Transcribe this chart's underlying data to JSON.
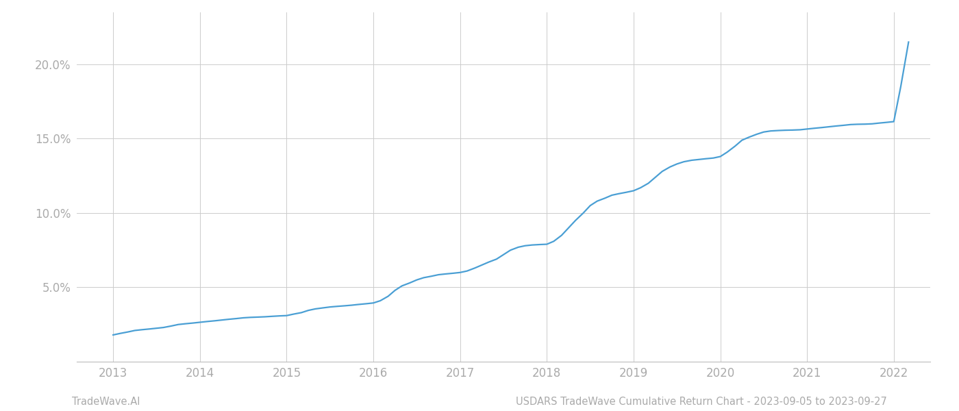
{
  "title": "USDARS TradeWave Cumulative Return Chart - 2023-09-05 to 2023-09-27",
  "footer_left": "TradeWave.AI",
  "footer_right": "USDARS TradeWave Cumulative Return Chart - 2023-09-05 to 2023-09-27",
  "line_color": "#4a9fd4",
  "background_color": "#ffffff",
  "grid_color": "#cccccc",
  "x_years": [
    2013,
    2014,
    2015,
    2016,
    2017,
    2018,
    2019,
    2020,
    2021,
    2022
  ],
  "x_values": [
    2013.0,
    2013.08,
    2013.17,
    2013.25,
    2013.33,
    2013.42,
    2013.5,
    2013.58,
    2013.67,
    2013.75,
    2013.83,
    2013.92,
    2014.0,
    2014.08,
    2014.17,
    2014.25,
    2014.33,
    2014.42,
    2014.5,
    2014.58,
    2014.67,
    2014.75,
    2014.83,
    2014.92,
    2015.0,
    2015.08,
    2015.17,
    2015.25,
    2015.33,
    2015.42,
    2015.5,
    2015.58,
    2015.67,
    2015.75,
    2015.83,
    2015.92,
    2016.0,
    2016.08,
    2016.17,
    2016.25,
    2016.33,
    2016.42,
    2016.5,
    2016.58,
    2016.67,
    2016.75,
    2016.83,
    2016.92,
    2017.0,
    2017.08,
    2017.17,
    2017.25,
    2017.33,
    2017.42,
    2017.5,
    2017.58,
    2017.67,
    2017.75,
    2017.83,
    2017.92,
    2018.0,
    2018.08,
    2018.17,
    2018.25,
    2018.33,
    2018.42,
    2018.5,
    2018.58,
    2018.67,
    2018.75,
    2018.83,
    2018.92,
    2019.0,
    2019.08,
    2019.17,
    2019.25,
    2019.33,
    2019.42,
    2019.5,
    2019.58,
    2019.67,
    2019.75,
    2019.83,
    2019.92,
    2020.0,
    2020.08,
    2020.17,
    2020.25,
    2020.33,
    2020.42,
    2020.5,
    2020.58,
    2020.67,
    2020.75,
    2020.83,
    2020.92,
    2021.0,
    2021.08,
    2021.17,
    2021.25,
    2021.33,
    2021.42,
    2021.5,
    2021.58,
    2021.67,
    2021.75,
    2021.83,
    2021.92,
    2022.0,
    2022.08,
    2022.17
  ],
  "y_values": [
    1.8,
    1.9,
    2.0,
    2.1,
    2.15,
    2.2,
    2.25,
    2.3,
    2.4,
    2.5,
    2.55,
    2.6,
    2.65,
    2.7,
    2.75,
    2.8,
    2.85,
    2.9,
    2.95,
    2.98,
    3.0,
    3.02,
    3.05,
    3.08,
    3.1,
    3.2,
    3.3,
    3.45,
    3.55,
    3.62,
    3.68,
    3.72,
    3.76,
    3.8,
    3.85,
    3.9,
    3.95,
    4.1,
    4.4,
    4.8,
    5.1,
    5.3,
    5.5,
    5.65,
    5.75,
    5.85,
    5.9,
    5.95,
    6.0,
    6.1,
    6.3,
    6.5,
    6.7,
    6.9,
    7.2,
    7.5,
    7.7,
    7.8,
    7.85,
    7.88,
    7.9,
    8.1,
    8.5,
    9.0,
    9.5,
    10.0,
    10.5,
    10.8,
    11.0,
    11.2,
    11.3,
    11.4,
    11.5,
    11.7,
    12.0,
    12.4,
    12.8,
    13.1,
    13.3,
    13.45,
    13.55,
    13.6,
    13.65,
    13.7,
    13.8,
    14.1,
    14.5,
    14.9,
    15.1,
    15.3,
    15.45,
    15.52,
    15.55,
    15.57,
    15.58,
    15.6,
    15.65,
    15.7,
    15.75,
    15.8,
    15.85,
    15.9,
    15.95,
    15.97,
    15.98,
    16.0,
    16.05,
    16.1,
    16.15,
    18.5,
    21.5
  ],
  "yticks": [
    5.0,
    10.0,
    15.0,
    20.0
  ],
  "ytick_labels": [
    "5.0%",
    "10.0%",
    "15.0%",
    "20.0%"
  ],
  "xlim": [
    2012.58,
    2022.42
  ],
  "ylim": [
    0.0,
    23.5
  ]
}
